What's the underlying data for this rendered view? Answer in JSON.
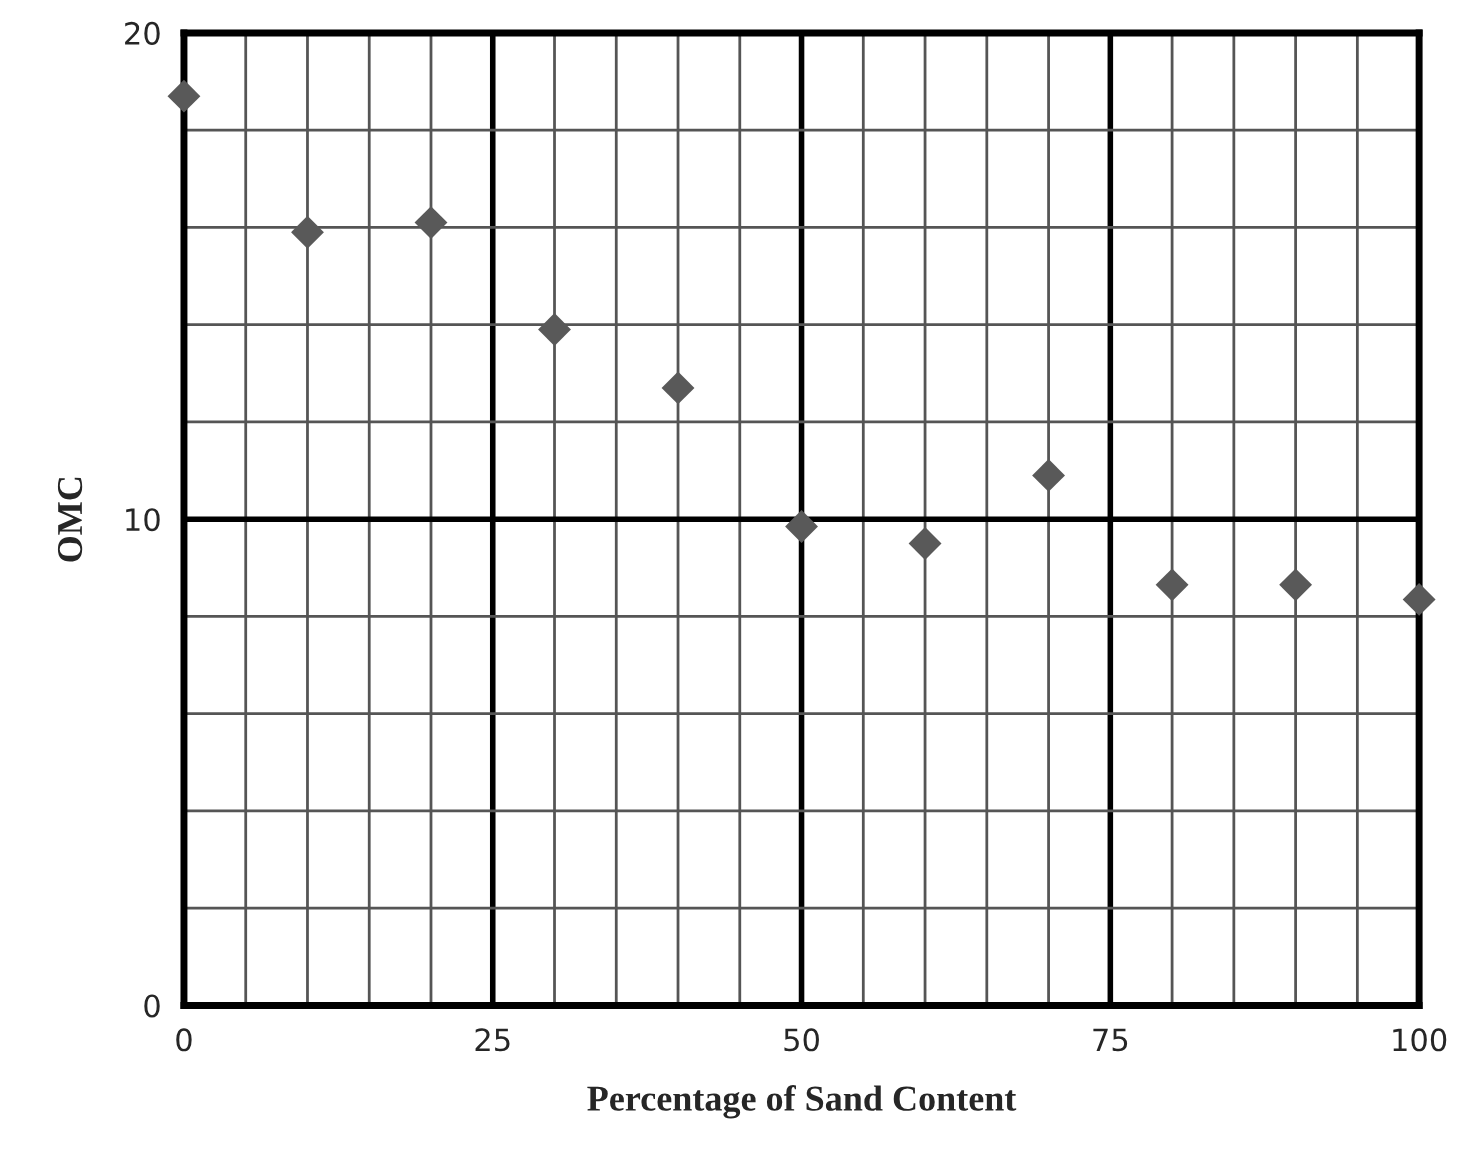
{
  "chart_data": {
    "type": "scatter",
    "xlabel": "Percentage of Sand Content",
    "ylabel": "OMC",
    "x": [
      0,
      10,
      20,
      30,
      40,
      50,
      60,
      70,
      80,
      90,
      100
    ],
    "values": [
      18.7,
      15.9,
      16.1,
      13.9,
      12.7,
      9.85,
      9.5,
      10.9,
      8.65,
      8.65,
      8.35
    ],
    "color": "#595959",
    "marker": "diamond",
    "xlim": [
      0,
      100
    ],
    "ylim": [
      0,
      20
    ],
    "xticks": [
      0,
      {
        "value": 5,
        "label": null
      },
      {
        "value": 10,
        "label": null
      },
      {
        "value": 15,
        "label": null
      },
      {
        "value": 20,
        "label": null
      },
      25,
      {
        "value": 30,
        "label": null
      },
      {
        "value": 35,
        "label": null
      },
      {
        "value": 40,
        "label": null
      },
      {
        "value": 45,
        "label": null
      },
      50,
      {
        "value": 55,
        "label": null
      },
      {
        "value": 60,
        "label": null
      },
      {
        "value": 65,
        "label": null
      },
      {
        "value": 70,
        "label": null
      },
      75,
      {
        "value": 80,
        "label": null
      },
      {
        "value": 85,
        "label": null
      },
      {
        "value": 90,
        "label": null
      },
      {
        "value": 95,
        "label": null
      },
      100
    ],
    "yticks": [
      0,
      {
        "value": 2,
        "label": null
      },
      {
        "value": 4,
        "label": null
      },
      {
        "value": 6,
        "label": null
      },
      {
        "value": 8,
        "label": null
      },
      10,
      {
        "value": 12,
        "label": null
      },
      {
        "value": 14,
        "label": null
      },
      {
        "value": 16,
        "label": null
      },
      {
        "value": 18,
        "label": null
      },
      20
    ],
    "grid": true
  }
}
